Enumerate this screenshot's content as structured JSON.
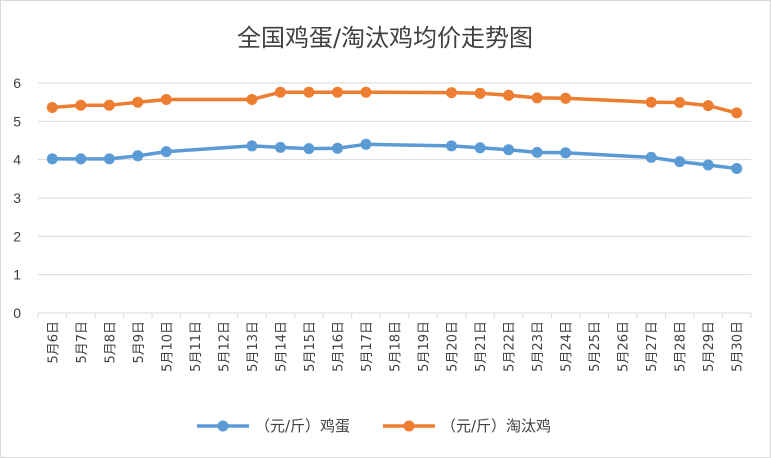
{
  "chart_data": {
    "type": "line",
    "title": "全国鸡蛋/淘汰鸡均价走势图",
    "categories": [
      "5月6日",
      "5月7日",
      "5月8日",
      "5月9日",
      "5月10日",
      "5月11日",
      "5月12日",
      "5月13日",
      "5月14日",
      "5月15日",
      "5月16日",
      "5月17日",
      "5月18日",
      "5月19日",
      "5月20日",
      "5月21日",
      "5月22日",
      "5月23日",
      "5月24日",
      "5月25日",
      "5月26日",
      "5月27日",
      "5月28日",
      "5月29日",
      "5月30日"
    ],
    "ylim": [
      0,
      6
    ],
    "yticks": [
      "0",
      "1",
      "2",
      "3",
      "4",
      "5",
      "6"
    ],
    "grid": true,
    "legend": "bottom",
    "series": [
      {
        "name": "（元/斤）鸡蛋",
        "color": "#5b9bd5",
        "values": [
          4.02,
          4.02,
          4.02,
          4.1,
          4.21,
          null,
          null,
          4.36,
          4.32,
          4.29,
          4.3,
          4.4,
          null,
          null,
          4.36,
          4.31,
          4.26,
          4.19,
          4.18,
          null,
          null,
          4.06,
          3.95,
          3.86,
          3.77
        ]
      },
      {
        "name": "（元/斤）淘汰鸡",
        "color": "#ed7d31",
        "values": [
          5.36,
          5.42,
          5.42,
          5.5,
          5.57,
          null,
          null,
          5.57,
          5.76,
          5.76,
          5.76,
          5.76,
          null,
          null,
          5.75,
          5.73,
          5.68,
          5.61,
          5.6,
          null,
          null,
          5.5,
          5.49,
          5.41,
          5.22
        ]
      }
    ]
  }
}
